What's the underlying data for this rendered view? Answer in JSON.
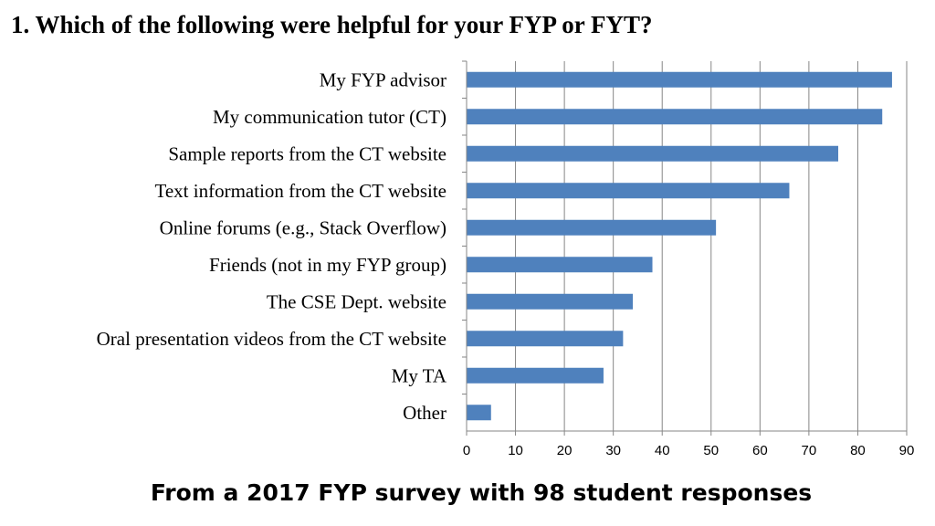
{
  "question": {
    "title": "1.  Which of the following were helpful for your FYP or FYT?"
  },
  "footnote": "From a 2017 FYP survey with 98 student responses",
  "chart_data": {
    "type": "bar",
    "orientation": "horizontal",
    "title": "",
    "xlabel": "",
    "ylabel": "",
    "categories": [
      "My FYP advisor",
      "My communication tutor (CT)",
      "Sample reports from the CT website",
      "Text information from the CT website",
      "Online forums (e.g., Stack Overflow)",
      "Friends (not in my FYP group)",
      "The CSE Dept. website",
      "Oral presentation videos from the CT website",
      "My TA",
      "Other"
    ],
    "values": [
      87,
      85,
      76,
      66,
      51,
      38,
      34,
      32,
      28,
      5
    ],
    "xlim": [
      0,
      90
    ],
    "xticks": [
      "0",
      "10",
      "20",
      "30",
      "40",
      "50",
      "60",
      "70",
      "80",
      "90"
    ],
    "grid": "vertical",
    "legend": "none",
    "bar_color": "#4f81bd",
    "grid_color": "#868686"
  }
}
